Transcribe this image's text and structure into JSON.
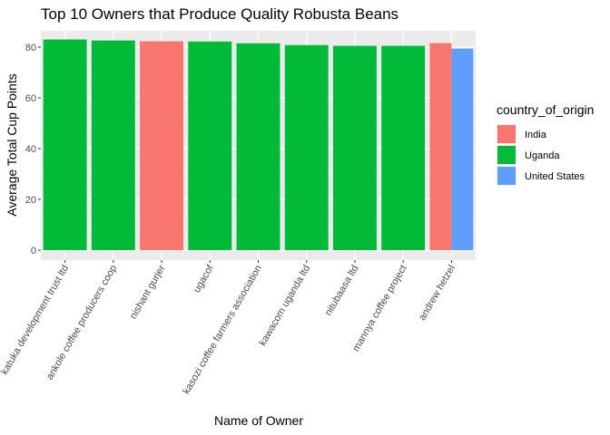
{
  "chart_data": {
    "type": "bar",
    "title": "Top 10 Owners that Produce Quality Robusta Beans",
    "xlabel": "Name of Owner",
    "ylabel": "Average Total Cup Points",
    "ylim": [
      0,
      85
    ],
    "yticks": [
      0,
      20,
      40,
      60,
      80
    ],
    "grid": true,
    "legend_position": "right",
    "legend_title": "country_of_origin",
    "legend": [
      {
        "name": "India",
        "color": "#F8766D"
      },
      {
        "name": "Uganda",
        "color": "#00BA38"
      },
      {
        "name": "United States",
        "color": "#619CFF"
      }
    ],
    "categories": [
      "katuka development trust ltd",
      "ankole coffee producers coop",
      "nishant gurjer",
      "ugacof",
      "kasozi coffee farmers association",
      "kawacom uganda ltd",
      "nitubaasa ltd",
      "mannya coffee project",
      "andrew hetzel"
    ],
    "bars": [
      {
        "category": "katuka development trust ltd",
        "country": "Uganda",
        "value": 83.0
      },
      {
        "category": "ankole coffee producers coop",
        "country": "Uganda",
        "value": 82.6
      },
      {
        "category": "nishant gurjer",
        "country": "India",
        "value": 82.3
      },
      {
        "category": "ugacof",
        "country": "Uganda",
        "value": 82.2
      },
      {
        "category": "kasozi coffee farmers association",
        "country": "Uganda",
        "value": 81.5
      },
      {
        "category": "kawacom uganda ltd",
        "country": "Uganda",
        "value": 80.8
      },
      {
        "category": "nitubaasa ltd",
        "country": "Uganda",
        "value": 80.5
      },
      {
        "category": "mannya coffee project",
        "country": "Uganda",
        "value": 80.5
      },
      {
        "category": "andrew hetzel",
        "country": "India",
        "value": 81.6
      },
      {
        "category": "andrew hetzel",
        "country": "United States",
        "value": 79.4
      }
    ]
  }
}
